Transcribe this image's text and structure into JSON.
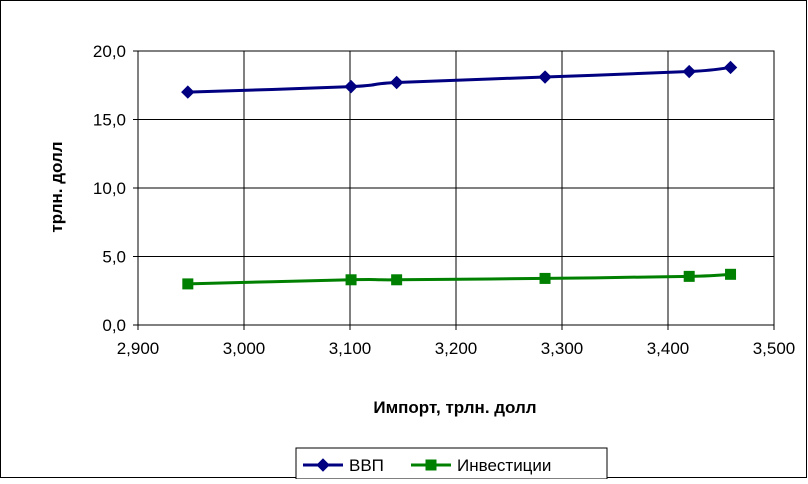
{
  "chart_data": {
    "type": "scatter",
    "title": "",
    "xlabel": "Импорт, трлн. долл",
    "ylabel": "трлн. долл",
    "xlim": [
      2900,
      3500
    ],
    "ylim": [
      0,
      20
    ],
    "x_ticks": [
      "2,900",
      "3,000",
      "3,100",
      "3,200",
      "3,300",
      "3,400",
      "3,500"
    ],
    "y_ticks": [
      "0,0",
      "5,0",
      "10,0",
      "15,0",
      "20,0"
    ],
    "grid": true,
    "legend_position": "bottom",
    "series": [
      {
        "name": "ВВП",
        "color": "#000080",
        "marker": "diamond",
        "points": [
          {
            "x": 2947,
            "y": 17.0
          },
          {
            "x": 3101,
            "y": 17.4
          },
          {
            "x": 3144,
            "y": 17.7
          },
          {
            "x": 3284,
            "y": 18.1
          },
          {
            "x": 3420,
            "y": 18.5
          },
          {
            "x": 3459,
            "y": 18.8
          }
        ]
      },
      {
        "name": "Инвестиции",
        "color": "#008000",
        "marker": "square",
        "points": [
          {
            "x": 2947,
            "y": 3.0
          },
          {
            "x": 3101,
            "y": 3.3
          },
          {
            "x": 3144,
            "y": 3.3
          },
          {
            "x": 3284,
            "y": 3.4
          },
          {
            "x": 3420,
            "y": 3.55
          },
          {
            "x": 3459,
            "y": 3.7
          }
        ]
      }
    ]
  }
}
